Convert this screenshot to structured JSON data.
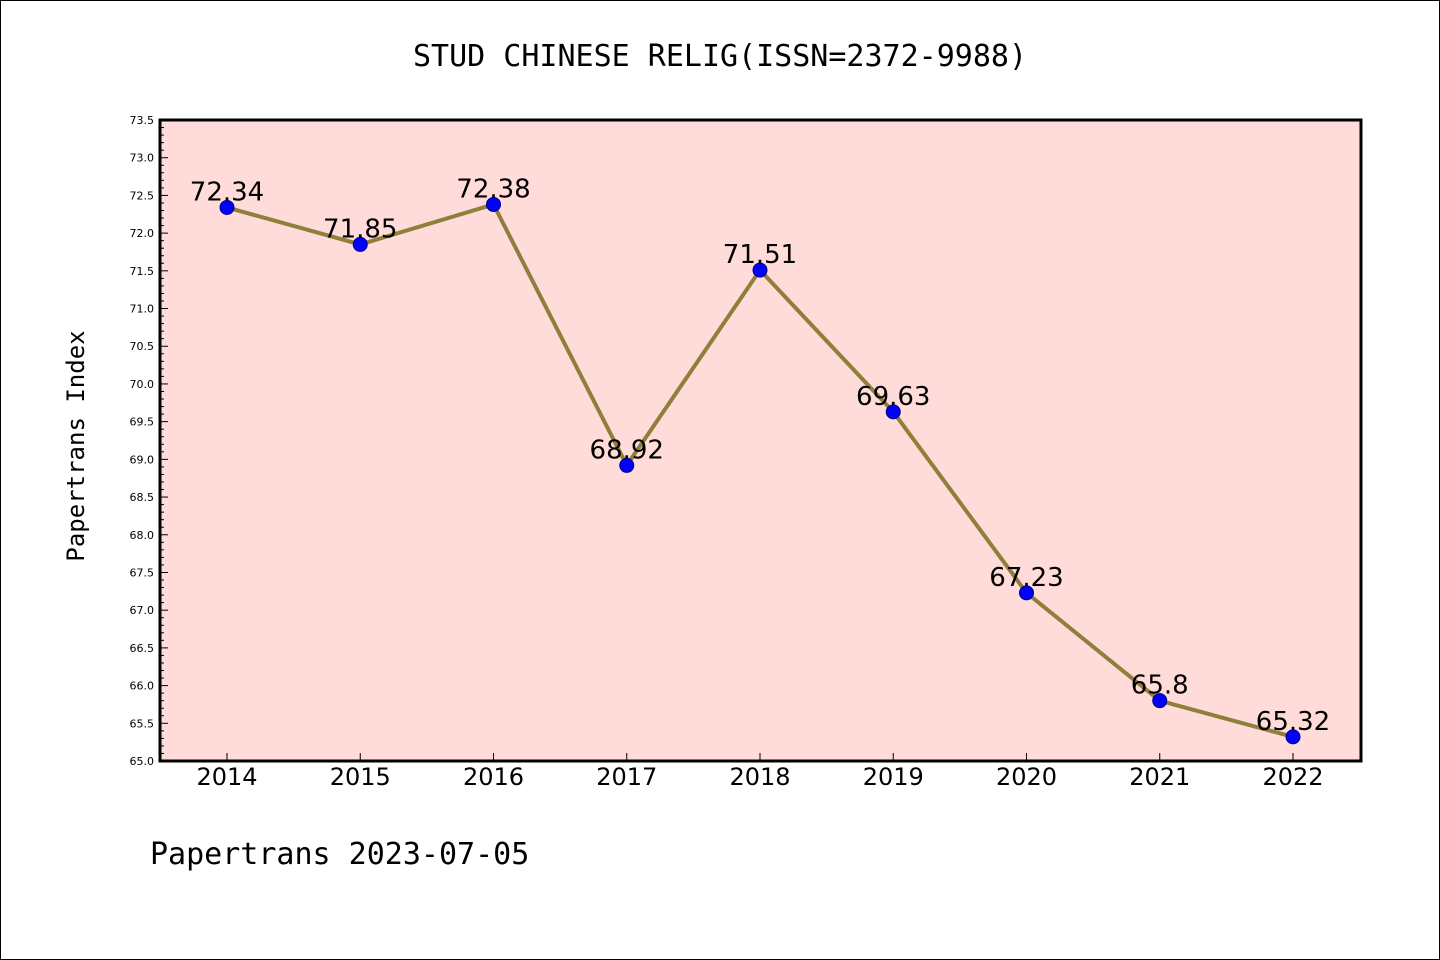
{
  "chart_data": {
    "type": "line",
    "title": "STUD CHINESE RELIG(ISSN=2372-9988)",
    "ylabel": "Papertrans Index",
    "xlabel": "",
    "categories": [
      "2014",
      "2015",
      "2016",
      "2017",
      "2018",
      "2019",
      "2020",
      "2021",
      "2022"
    ],
    "series": [
      {
        "values": [
          72.34,
          71.85,
          72.38,
          68.92,
          71.51,
          69.63,
          67.23,
          65.8,
          65.32
        ],
        "labels": [
          "72.34",
          "71.85",
          "72.38",
          "68.92",
          "71.51",
          "69.63",
          "67.23",
          "65.8",
          "65.32"
        ]
      }
    ],
    "ylim": [
      65.0,
      73.5
    ],
    "yticks": [
      "65.0",
      "65.5",
      "66.0",
      "66.5",
      "67.0",
      "67.5",
      "68.0",
      "68.5",
      "69.0",
      "69.5",
      "70.0",
      "70.5",
      "71.0",
      "71.5",
      "72.0",
      "72.5",
      "73.0",
      "73.5"
    ],
    "grid": false,
    "legend": "none",
    "colors": {
      "plot_background": "#FFDCDA",
      "line": "#8F7F3A",
      "marker": "#0000FF",
      "marker_edge": "#000080"
    }
  },
  "footer": "Papertrans 2023-07-05"
}
